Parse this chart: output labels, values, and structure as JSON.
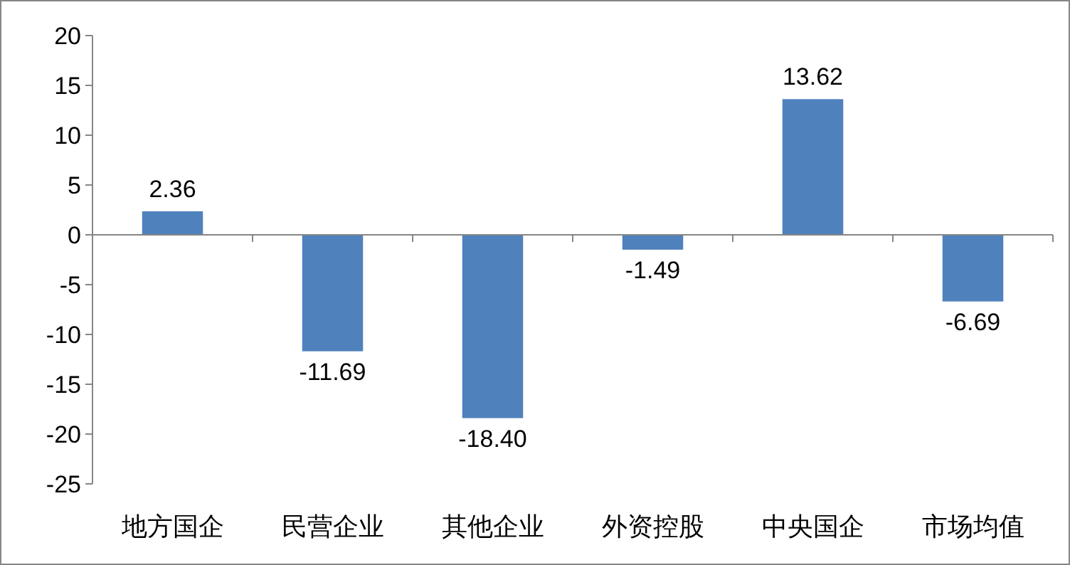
{
  "chart_data": {
    "type": "bar",
    "categories": [
      "地方国企",
      "民营企业",
      "其他企业",
      "外资控股",
      "中央国企",
      "市场均值"
    ],
    "values": [
      2.36,
      -11.69,
      -18.4,
      -1.49,
      13.62,
      -6.69
    ],
    "value_labels": [
      "2.36",
      "-11.69",
      "-18.40",
      "-1.49",
      "13.62",
      "-6.69"
    ],
    "color": "#4f81bd",
    "ylim": [
      -25,
      20
    ],
    "yticks": [
      -25,
      -20,
      -15,
      -10,
      -5,
      0,
      5,
      10,
      15,
      20
    ],
    "tick_labels": true
  }
}
